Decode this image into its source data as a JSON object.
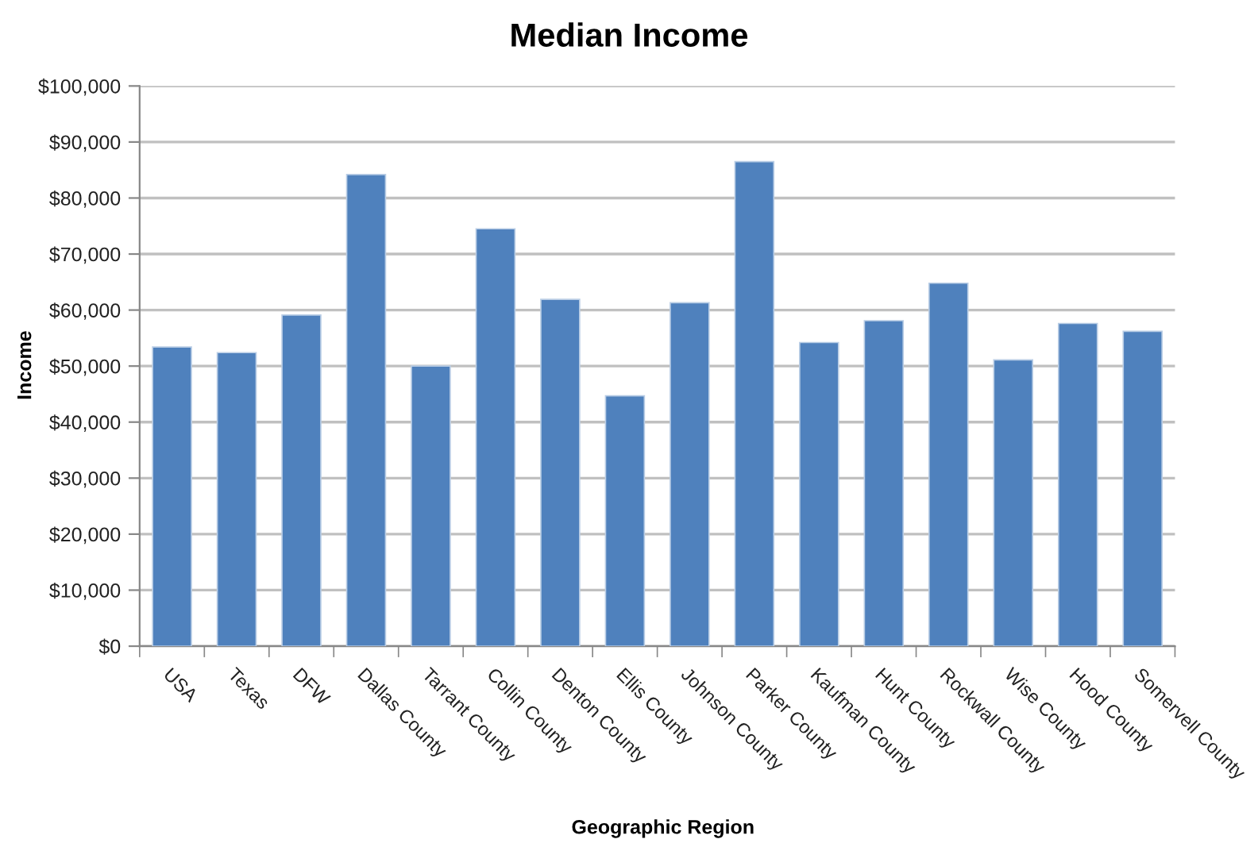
{
  "chart_data": {
    "type": "bar",
    "title": "Median Income",
    "xlabel": "Geographic Region",
    "ylabel": "Income",
    "categories": [
      "USA",
      "Texas",
      "DFW",
      "Dallas County",
      "Tarrant County",
      "Collin County",
      "Denton County",
      "Ellis County",
      "Johnson County",
      "Parker County",
      "Kaufman County",
      "Hunt County",
      "Rockwall County",
      "Wise County",
      "Hood County",
      "Somervell County"
    ],
    "values": [
      53400,
      52400,
      59100,
      84200,
      50000,
      74500,
      61900,
      44700,
      61300,
      86500,
      54200,
      58100,
      64800,
      51100,
      57600,
      56200
    ],
    "color": "#4f81bd",
    "ylim": [
      0,
      100000
    ],
    "yticks": [
      {
        "value": 0,
        "label": "$0"
      },
      {
        "value": 10000,
        "label": "$10,000"
      },
      {
        "value": 20000,
        "label": "$20,000"
      },
      {
        "value": 30000,
        "label": "$30,000"
      },
      {
        "value": 40000,
        "label": "$40,000"
      },
      {
        "value": 50000,
        "label": "$50,000"
      },
      {
        "value": 60000,
        "label": "$60,000"
      },
      {
        "value": 70000,
        "label": "$70,000"
      },
      {
        "value": 80000,
        "label": "$80,000"
      },
      {
        "value": 90000,
        "label": "$90,000"
      },
      {
        "value": 100000,
        "label": "$100,000"
      }
    ],
    "grid": "y"
  }
}
